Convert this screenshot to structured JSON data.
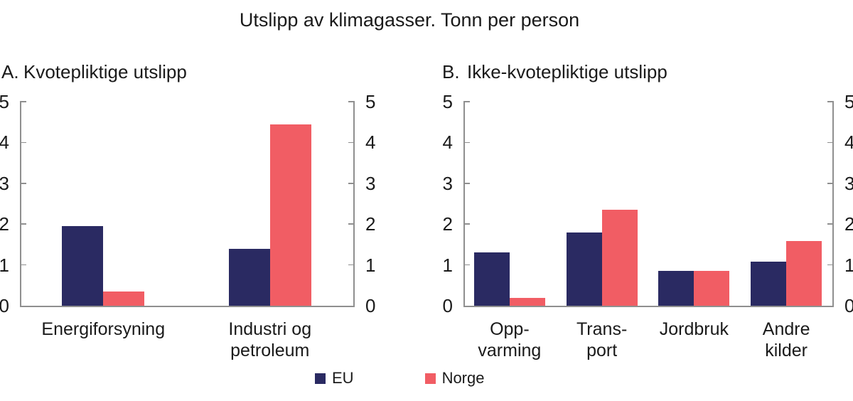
{
  "title": "Utslipp av klimagasser. Tonn per person",
  "colors": {
    "eu": "#2A2A62",
    "norge": "#F15D64",
    "axis": "#8f8f8f",
    "text": "#1a1a1a"
  },
  "legend": {
    "position": "bottom",
    "items": [
      {
        "label": "EU",
        "color": "#2A2A62"
      },
      {
        "label": "Norge",
        "color": "#F15D64"
      }
    ]
  },
  "chart_data": [
    {
      "type": "bar",
      "panel_label": "A.",
      "title": "Kvotepliktige utslipp",
      "categories": [
        "Energiforsyning",
        "Industri og petroleum"
      ],
      "category_lines": [
        [
          "Energiforsyning"
        ],
        [
          "Industri og",
          "petroleum"
        ]
      ],
      "series": [
        {
          "name": "EU",
          "color": "#2A2A62",
          "values": [
            1.95,
            1.4
          ]
        },
        {
          "name": "Norge",
          "color": "#F15D64",
          "values": [
            0.35,
            4.45
          ]
        }
      ],
      "ylim": [
        0,
        5
      ],
      "yticks": [
        0,
        1,
        2,
        3,
        4,
        5
      ],
      "xlabel": "",
      "ylabel": "",
      "grid": false,
      "dual_axis": true
    },
    {
      "type": "bar",
      "panel_label": "B.",
      "title": "Ikke-kvotepliktige utslipp",
      "categories": [
        "Oppvarming",
        "Transport",
        "Jordbruk",
        "Andre kilder"
      ],
      "category_lines": [
        [
          "Opp-",
          "varming"
        ],
        [
          "Trans-",
          "port"
        ],
        [
          "Jordbruk"
        ],
        [
          "Andre",
          "kilder"
        ]
      ],
      "series": [
        {
          "name": "EU",
          "color": "#2A2A62",
          "values": [
            1.3,
            1.8,
            0.85,
            1.08
          ]
        },
        {
          "name": "Norge",
          "color": "#F15D64",
          "values": [
            0.2,
            2.35,
            0.85,
            1.58
          ]
        }
      ],
      "ylim": [
        0,
        5
      ],
      "yticks": [
        0,
        1,
        2,
        3,
        4,
        5
      ],
      "xlabel": "",
      "ylabel": "",
      "grid": false,
      "dual_axis": true
    }
  ]
}
